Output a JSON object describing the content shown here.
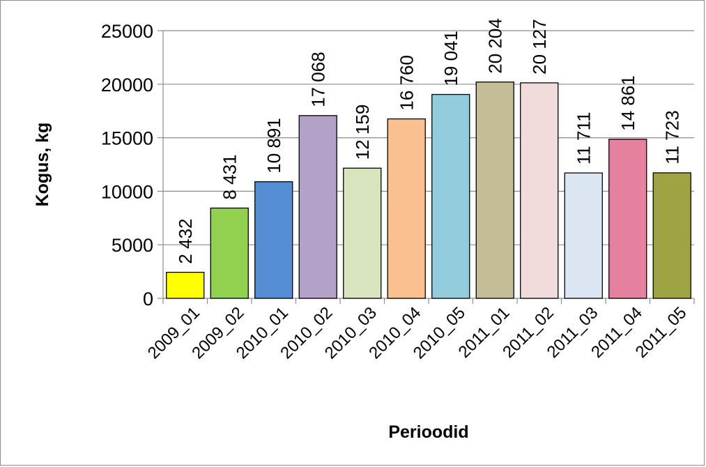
{
  "chart_data": {
    "type": "bar",
    "xlabel": "Perioodid",
    "ylabel": "Kogus, kg",
    "ylim": [
      0,
      25000
    ],
    "yticks": [
      "0",
      "5000",
      "10000",
      "15000",
      "20000",
      "25000"
    ],
    "grid": true,
    "categories": [
      "2009_01",
      "2009_02",
      "2010_01",
      "2010_02",
      "2010_03",
      "2010_04",
      "2010_05",
      "2011_01",
      "2011_02",
      "2011_03",
      "2011_04",
      "2011_05"
    ],
    "values": [
      2432,
      8431,
      10891,
      17068,
      12159,
      16760,
      19041,
      20204,
      20127,
      11711,
      14861,
      11723
    ],
    "data_labels": [
      "2 432",
      "8 431",
      "10 891",
      "17 068",
      "12 159",
      "16 760",
      "19 041",
      "20 204",
      "20 127",
      "11 711",
      "14 861",
      "11 723"
    ],
    "colors": [
      "#ffff00",
      "#92d050",
      "#558ed5",
      "#b3a2c7",
      "#d7e4bd",
      "#fac090",
      "#93cddd",
      "#c4bd97",
      "#f2dcdb",
      "#dce6f2",
      "#e6809f",
      "#9ea441"
    ]
  }
}
